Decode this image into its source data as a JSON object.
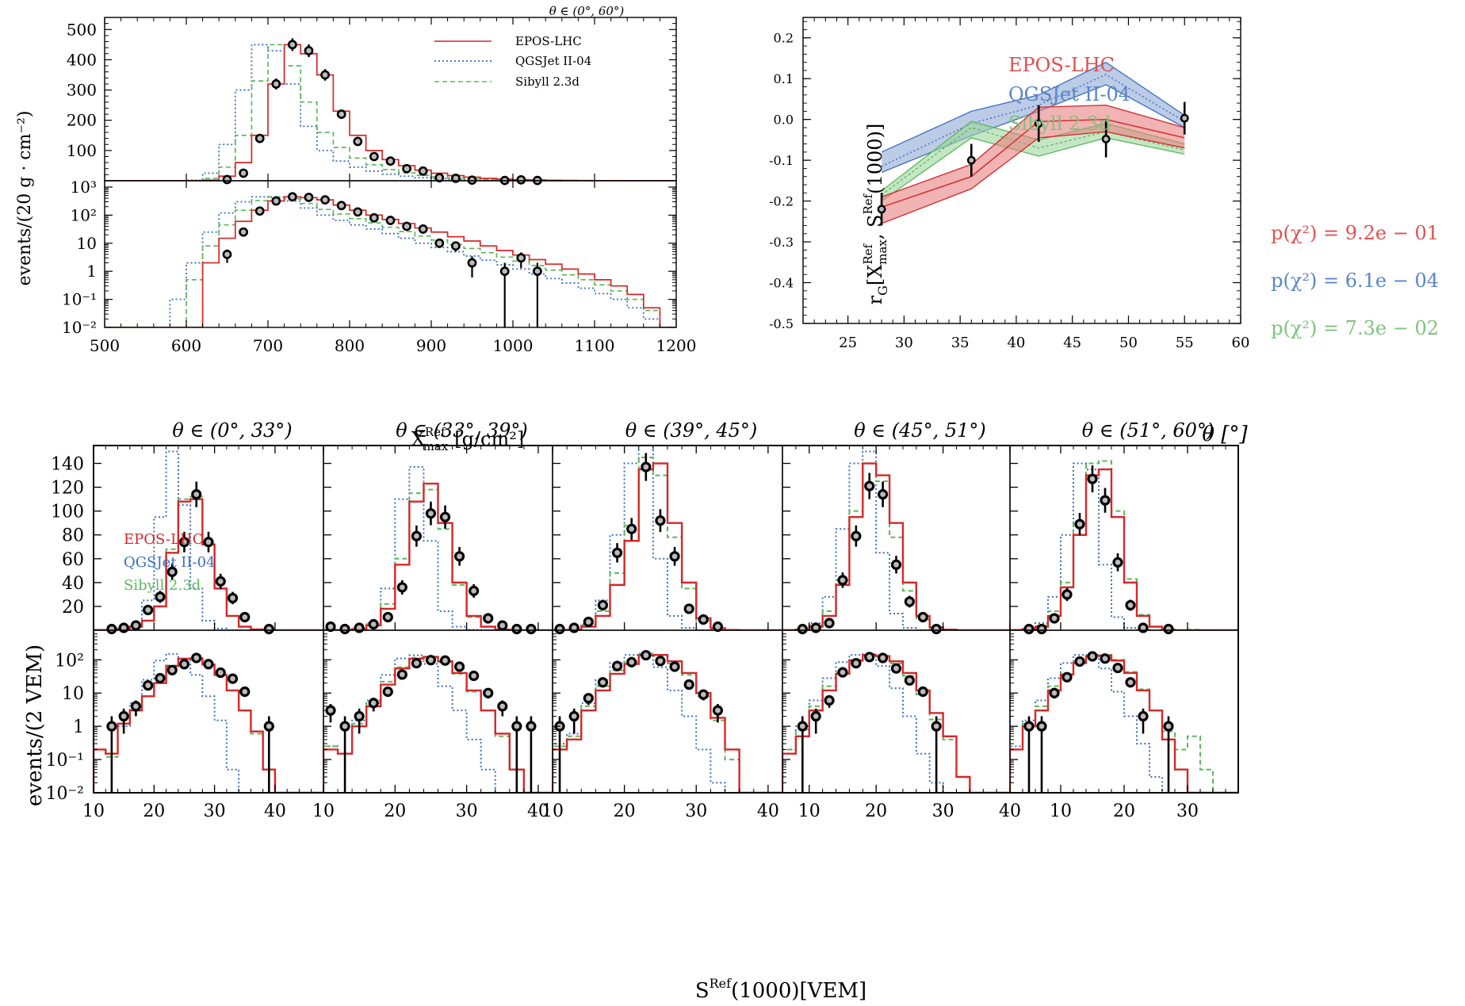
{
  "colors": {
    "epos": "#d62728",
    "qgs": "#3a6fbf",
    "sib": "#5cb85c",
    "epos_band": "#e88080",
    "qgs_band": "#8fa9d6",
    "sib_band": "#9fd69f",
    "data": "#000000",
    "marker_fill": "#bbbbbb"
  },
  "legend": {
    "epos": "EPOS-LHC",
    "qgs": "QGSJet II-04",
    "sib": "Sibyll 2.3d"
  },
  "xmax_panel": {
    "title": "θ ∈ (0°, 60°)",
    "ylabel": "events/(20 g · cm⁻²)",
    "xlabel_main": "X",
    "xlabel_sup": "Ref",
    "xlabel_sub": "max",
    "xlabel_unit": "[g/cm²]",
    "xticks": [
      500,
      600,
      700,
      800,
      900,
      1000,
      1100,
      1200
    ],
    "lin_yticks": [
      100,
      200,
      300,
      400,
      500
    ],
    "log_ytick_labels": [
      "10⁻²",
      "10⁻¹",
      "1",
      "10",
      "10²",
      "10³"
    ],
    "log_ytick_values": [
      0.01,
      0.1,
      1,
      10,
      100,
      1000
    ],
    "bin_edges": [
      500,
      520,
      540,
      560,
      580,
      600,
      620,
      640,
      660,
      680,
      700,
      720,
      740,
      760,
      780,
      800,
      820,
      840,
      860,
      880,
      900,
      920,
      940,
      960,
      980,
      1000,
      1020,
      1040,
      1060,
      1080,
      1100,
      1120,
      1140,
      1160,
      1180,
      1200
    ],
    "models": {
      "epos": [
        0,
        0,
        0,
        0,
        0,
        0.01,
        2,
        15,
        60,
        150,
        320,
        450,
        420,
        350,
        230,
        150,
        100,
        70,
        50,
        35,
        25,
        17,
        12,
        8,
        5.5,
        3.8,
        2.6,
        1.8,
        1.2,
        0.8,
        0.5,
        0.3,
        0.15,
        0.05,
        0.01
      ],
      "qgs": [
        0,
        0,
        0,
        0,
        0.1,
        2,
        25,
        120,
        300,
        450,
        430,
        320,
        180,
        100,
        65,
        45,
        32,
        22,
        15,
        10,
        7,
        5,
        3.5,
        2.5,
        1.7,
        1.2,
        0.8,
        0.55,
        0.38,
        0.25,
        0.16,
        0.1,
        0.05,
        0.02,
        0.01
      ],
      "sib": [
        0,
        0,
        0,
        0,
        0.01,
        0.5,
        8,
        45,
        150,
        330,
        450,
        380,
        260,
        160,
        110,
        75,
        53,
        37,
        26,
        18,
        13,
        9,
        6.5,
        4.6,
        3.2,
        2.3,
        1.6,
        1.1,
        0.75,
        0.5,
        0.33,
        0.2,
        0.1,
        0.04,
        0.01
      ]
    },
    "data_x": [
      650,
      670,
      690,
      710,
      730,
      750,
      770,
      790,
      810,
      830,
      850,
      870,
      890,
      910,
      930,
      950,
      990,
      1010,
      1030
    ],
    "data_y": [
      4,
      25,
      140,
      320,
      450,
      430,
      350,
      220,
      130,
      80,
      65,
      40,
      32,
      10,
      8,
      2,
      1,
      3,
      1
    ],
    "data_err": [
      2,
      5,
      12,
      18,
      21,
      21,
      19,
      15,
      11,
      9,
      8,
      6,
      6,
      3,
      3,
      1.4,
      1,
      1.7,
      1
    ]
  },
  "rg_panel": {
    "ylabel_main": "r",
    "ylabel_sub": "G",
    "ylabel_x": "X",
    "ylabel_xsup": "Ref",
    "ylabel_xsub": "max",
    "ylabel_s": "S",
    "ylabel_ssup": "Ref",
    "ylabel_tail": "(1000)]",
    "xlabel": "θ [°]",
    "xticks": [
      25,
      30,
      35,
      40,
      45,
      50,
      55,
      60
    ],
    "yticks": [
      0.2,
      0.1,
      0.0,
      -0.1,
      -0.2,
      -0.3,
      -0.4,
      -0.5
    ],
    "ytick_labels": [
      "0.2",
      "0.1",
      "0.0",
      "-0.1",
      "-0.2",
      "-0.3",
      "-0.4",
      "-0.5"
    ],
    "band_x": [
      28,
      36,
      42,
      48,
      55
    ],
    "epos": {
      "center": [
        -0.215,
        -0.14,
        -0.005,
        0.0,
        -0.045
      ],
      "upper": [
        -0.19,
        -0.11,
        0.03,
        0.035,
        -0.02
      ],
      "lower": [
        -0.255,
        -0.17,
        -0.045,
        -0.03,
        -0.07
      ]
    },
    "qgs": {
      "center": [
        -0.115,
        -0.01,
        0.035,
        0.11,
        -0.005
      ],
      "upper": [
        -0.08,
        0.02,
        0.06,
        0.14,
        0.01
      ],
      "lower": [
        -0.13,
        -0.04,
        0.02,
        0.085,
        -0.02
      ]
    },
    "sib": {
      "center": [
        -0.185,
        -0.02,
        -0.07,
        -0.03,
        -0.075
      ],
      "upper": [
        -0.175,
        -0.005,
        -0.05,
        -0.01,
        -0.06
      ],
      "lower": [
        -0.2,
        -0.045,
        -0.09,
        -0.045,
        -0.085
      ]
    },
    "data_x": [
      28,
      36,
      42,
      48,
      55
    ],
    "data_y": [
      -0.22,
      -0.1,
      -0.01,
      -0.048,
      0.003
    ],
    "data_err": [
      0.04,
      0.04,
      0.045,
      0.045,
      0.04
    ],
    "pvals": [
      "p(χ²) = 9.2e − 01",
      "p(χ²) = 6.1e − 04",
      "p(χ²) = 7.3e − 02"
    ]
  },
  "s1000_panels": {
    "ylabel": "events/(2 VEM)",
    "xlabel": "S",
    "xlabel_sup": "Ref",
    "xlabel_tail": "(1000)[VEM]",
    "lin_yticks": [
      20,
      40,
      60,
      80,
      100,
      120,
      140
    ],
    "log_ytick_labels": [
      "10⁻²",
      "10⁻¹",
      "1",
      "10",
      "10²"
    ],
    "log_ytick_values": [
      0.01,
      0.1,
      1,
      10,
      100
    ],
    "panels": [
      {
        "title": "θ ∈ (0°, 33°)",
        "xmin": 10,
        "xmax": 48,
        "xticks": [
          10,
          20,
          30,
          40
        ],
        "bin_start": 10,
        "epos": [
          0.2,
          0.15,
          1.2,
          3,
          8,
          20,
          65,
          108,
          110,
          72,
          35,
          12,
          3,
          0.7,
          0.05,
          0,
          0,
          0,
          0
        ],
        "qgs": [
          0.2,
          0.15,
          1,
          5,
          25,
          95,
          150,
          105,
          35,
          8,
          1.5,
          0.05,
          0,
          0,
          0,
          0,
          0,
          0,
          0
        ],
        "sib": [
          0.2,
          0.12,
          1.2,
          3,
          8,
          20,
          68,
          110,
          112,
          72,
          35,
          12,
          3,
          0.6,
          0.05,
          0,
          0,
          0,
          0
        ],
        "data_x": [
          13,
          15,
          17,
          19,
          21,
          23,
          25,
          27,
          29,
          31,
          33,
          35,
          39
        ],
        "data_y": [
          1,
          2,
          4,
          17,
          28,
          49,
          74,
          114,
          74,
          41,
          27,
          11,
          1
        ],
        "data_err": [
          1,
          1.4,
          2,
          4,
          5,
          7,
          8.6,
          10.7,
          8.6,
          6.4,
          5.2,
          3.3,
          1
        ]
      },
      {
        "title": "θ ∈ (33°, 39°)",
        "xmin": 10,
        "xmax": 42,
        "xticks": [
          10,
          20,
          30,
          40
        ],
        "bin_start": 10,
        "epos": [
          0.2,
          0.15,
          1,
          4,
          18,
          55,
          108,
          123,
          90,
          40,
          12,
          3,
          0.6,
          0.05,
          0,
          0
        ],
        "qgs": [
          0.25,
          0.15,
          1.5,
          6,
          35,
          110,
          137,
          75,
          16,
          3,
          0.4,
          0.05,
          0,
          0,
          0,
          0
        ],
        "sib": [
          0.25,
          0.15,
          1.2,
          5,
          22,
          60,
          115,
          118,
          85,
          38,
          11,
          3,
          0.5,
          0.05,
          0,
          0
        ],
        "data_x": [
          11,
          13,
          15,
          17,
          19,
          21,
          23,
          25,
          27,
          29,
          31,
          33,
          35,
          37,
          39
        ],
        "data_y": [
          3,
          1,
          2,
          5,
          11,
          36,
          79,
          98,
          95,
          62,
          33,
          10,
          4,
          1,
          1
        ],
        "data_err": [
          1.7,
          1,
          1.4,
          2.2,
          3.3,
          6,
          8.9,
          9.9,
          9.7,
          7.9,
          5.7,
          3.2,
          2,
          1,
          1
        ]
      },
      {
        "title": "θ ∈ (39°, 45°)",
        "xmin": 10,
        "xmax": 42,
        "xticks": [
          10,
          20,
          30,
          40
        ],
        "bin_start": 10,
        "epos": [
          0.2,
          0.4,
          3,
          12,
          38,
          75,
          135,
          140,
          90,
          40,
          10,
          1.8,
          0.2,
          0,
          0,
          0
        ],
        "qgs": [
          0.3,
          0.6,
          5,
          25,
          80,
          140,
          155,
          60,
          12,
          2,
          0.2,
          0.02,
          0,
          0,
          0,
          0
        ],
        "sib": [
          0.25,
          0.5,
          4,
          16,
          48,
          88,
          145,
          130,
          78,
          35,
          8,
          1.5,
          0.1,
          0,
          0,
          0
        ],
        "data_x": [
          11,
          13,
          15,
          17,
          19,
          21,
          23,
          25,
          27,
          29,
          31,
          33
        ],
        "data_y": [
          1,
          2,
          7,
          21,
          65,
          85,
          137,
          92,
          62,
          18,
          9,
          3
        ],
        "data_err": [
          1,
          1.4,
          2.6,
          4.6,
          8.1,
          9.2,
          11.7,
          9.6,
          7.9,
          4.2,
          3,
          1.7
        ]
      },
      {
        "title": "θ ∈ (45°, 51°)",
        "xmin": 6,
        "xmax": 40,
        "xticks": [
          10,
          20,
          30,
          40
        ],
        "bin_start": 6,
        "epos": [
          0.15,
          0.5,
          3,
          12,
          38,
          95,
          140,
          130,
          90,
          40,
          12,
          2.5,
          0.5,
          0.03,
          0,
          0,
          0
        ],
        "qgs": [
          0.2,
          1,
          6,
          28,
          85,
          140,
          150,
          65,
          14,
          2,
          0.15,
          0.02,
          0,
          0,
          0,
          0,
          0
        ],
        "sib": [
          0.2,
          0.8,
          4,
          16,
          42,
          100,
          140,
          125,
          78,
          33,
          9,
          1.6,
          0.4,
          0.03,
          0,
          0,
          0
        ],
        "data_x": [
          9,
          11,
          13,
          15,
          17,
          19,
          21,
          23,
          25,
          27,
          29
        ],
        "data_y": [
          1,
          2,
          6,
          42,
          79,
          121,
          114,
          55,
          24,
          11,
          1
        ],
        "data_err": [
          1,
          1.4,
          2.4,
          6.5,
          8.9,
          11,
          10.7,
          7.4,
          4.9,
          3.3,
          1
        ]
      },
      {
        "title": "θ ∈ (51°, 60°)",
        "xmin": 2,
        "xmax": 38,
        "xticks": [
          10,
          20,
          30
        ],
        "bin_start": 2,
        "epos": [
          0.2,
          1,
          3,
          12,
          36,
          80,
          130,
          135,
          95,
          40,
          12,
          3,
          0.4,
          0.05,
          0,
          0,
          0,
          0
        ],
        "qgs": [
          0.25,
          1.5,
          6,
          28,
          80,
          140,
          135,
          55,
          11,
          2,
          0.3,
          0.03,
          0,
          0,
          0,
          0,
          0,
          0
        ],
        "sib": [
          0.2,
          1.2,
          4,
          16,
          40,
          90,
          140,
          142,
          100,
          43,
          13,
          3,
          0.7,
          0.2,
          0.5,
          0.05,
          0,
          0
        ],
        "data_x": [
          5,
          7,
          9,
          11,
          13,
          15,
          17,
          19,
          21,
          23,
          27
        ],
        "data_y": [
          1,
          1,
          10,
          30,
          89,
          127,
          109,
          57,
          21,
          2,
          1
        ],
        "data_err": [
          1,
          1,
          3.2,
          5.5,
          9.4,
          11.3,
          10.4,
          7.5,
          4.6,
          1.4,
          1
        ]
      }
    ]
  }
}
